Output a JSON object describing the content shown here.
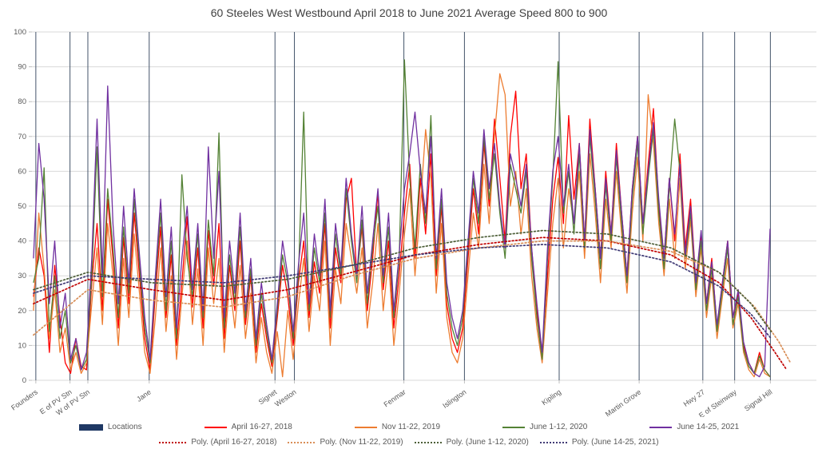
{
  "title": "60 Steeles West Westbound April 2018 to June 2021 Average Speed 800 to 900",
  "colors": {
    "title_text": "#404040",
    "axis_text": "#595959",
    "gridline": "#D9D9D9",
    "location_line": "#44546A",
    "locations_legend_swatch": "#1F3864"
  },
  "chart_data": {
    "type": "line",
    "title": "60 Steeles West Westbound April 2018 to June 2021 Average Speed 800 to 900",
    "xlabel": "",
    "ylabel": "",
    "ylim": [
      0,
      100
    ],
    "y_ticks": [
      0,
      10,
      20,
      30,
      40,
      50,
      60,
      70,
      80,
      90,
      100
    ],
    "grid": "horizontal major gridlines; vertical line at each named location",
    "legend_position": "bottom",
    "locations_series": {
      "name": "Locations",
      "note": "full-height vertical marker line at each station, 0 to 100",
      "line_color": "#44546A",
      "legend_swatch_color": "#1F3864"
    },
    "locations": [
      {
        "name": "Founders",
        "f": 0.005
      },
      {
        "name": "E of PV Stn",
        "f": 0.049
      },
      {
        "name": "W of PV Stn",
        "f": 0.072
      },
      {
        "name": "Jane",
        "f": 0.151
      },
      {
        "name": "Signet",
        "f": 0.313
      },
      {
        "name": "Weston",
        "f": 0.338
      },
      {
        "name": "Fenmar",
        "f": 0.479
      },
      {
        "name": "Islington",
        "f": 0.557
      },
      {
        "name": "Kipling",
        "f": 0.679
      },
      {
        "name": "Martin Grove",
        "f": 0.782
      },
      {
        "name": "Hwy 27",
        "f": 0.864
      },
      {
        "name": "E of Steinway",
        "f": 0.905
      },
      {
        "name": "Signal Hill",
        "f": 0.951
      }
    ],
    "series_x_range": [
      0.002,
      0.9506
    ],
    "series": [
      {
        "name": "April 16-27, 2018",
        "color": "#FF0000",
        "values": [
          24,
          38,
          30,
          8,
          33,
          18,
          5,
          2,
          12,
          4,
          3,
          28,
          45,
          20,
          52,
          35,
          15,
          41,
          22,
          48,
          30,
          12,
          3,
          25,
          44,
          18,
          36,
          10,
          28,
          47,
          21,
          38,
          15,
          43,
          27,
          45,
          12,
          33,
          20,
          40,
          16,
          30,
          8,
          22,
          12,
          4,
          18,
          33,
          24,
          10,
          28,
          40,
          18,
          34,
          25,
          45,
          15,
          38,
          28,
          52,
          58,
          30,
          44,
          20,
          35,
          54,
          26,
          40,
          15,
          30,
          48,
          62,
          35,
          58,
          42,
          65,
          30,
          50,
          22,
          12,
          8,
          15,
          35,
          55,
          42,
          68,
          50,
          75,
          58,
          40,
          70,
          83,
          55,
          65,
          38,
          20,
          8,
          30,
          52,
          64,
          45,
          76,
          52,
          68,
          40,
          75,
          55,
          35,
          60,
          42,
          68,
          48,
          30,
          55,
          70,
          45,
          62,
          78,
          50,
          35,
          58,
          40,
          65,
          38,
          52,
          28,
          42,
          22,
          35,
          15,
          28,
          40,
          18,
          25,
          10,
          5,
          2,
          8,
          3,
          1
        ]
      },
      {
        "name": "Nov 11-22, 2019",
        "color": "#ED7D31",
        "values": [
          20,
          48,
          32,
          12,
          26,
          8,
          15,
          3,
          8,
          2,
          5,
          22,
          38,
          16,
          45,
          30,
          10,
          35,
          18,
          42,
          25,
          8,
          2,
          18,
          38,
          14,
          30,
          6,
          24,
          40,
          16,
          32,
          10,
          38,
          22,
          35,
          8,
          28,
          15,
          33,
          12,
          25,
          5,
          18,
          8,
          2,
          14,
          1,
          20,
          6,
          22,
          35,
          14,
          30,
          20,
          40,
          10,
          32,
          22,
          45,
          35,
          25,
          38,
          15,
          28,
          45,
          20,
          35,
          10,
          25,
          42,
          55,
          30,
          50,
          72,
          58,
          25,
          45,
          18,
          8,
          5,
          12,
          30,
          48,
          38,
          62,
          45,
          70,
          88,
          82,
          50,
          60,
          42,
          55,
          30,
          15,
          5,
          25,
          45,
          58,
          38,
          55,
          45,
          60,
          35,
          65,
          48,
          28,
          52,
          38,
          60,
          42,
          25,
          48,
          64,
          40,
          82,
          68,
          45,
          30,
          52,
          35,
          58,
          32,
          46,
          24,
          38,
          18,
          30,
          12,
          24,
          35,
          15,
          22,
          8,
          3,
          1,
          6,
          2,
          1
        ]
      },
      {
        "name": "June 1-12, 2020",
        "color": "#548235",
        "values": [
          28,
          35,
          61,
          14,
          30,
          12,
          20,
          5,
          10,
          3,
          6,
          30,
          67,
          24,
          55,
          38,
          18,
          44,
          25,
          52,
          33,
          15,
          5,
          28,
          48,
          20,
          40,
          12,
          59,
          35,
          24,
          42,
          18,
          46,
          30,
          71,
          15,
          36,
          22,
          44,
          18,
          32,
          10,
          25,
          14,
          5,
          20,
          36,
          28,
          12,
          30,
          77,
          20,
          38,
          28,
          48,
          18,
          42,
          30,
          55,
          40,
          28,
          46,
          22,
          38,
          50,
          28,
          44,
          18,
          34,
          92,
          58,
          38,
          62,
          45,
          76,
          32,
          52,
          25,
          15,
          10,
          18,
          38,
          58,
          45,
          70,
          52,
          65,
          48,
          35,
          62,
          55,
          48,
          60,
          35,
          18,
          6,
          35,
          58,
          91.5,
          48,
          60,
          42,
          65,
          38,
          70,
          52,
          32,
          56,
          40,
          64,
          45,
          28,
          52,
          68,
          42,
          58,
          72,
          48,
          32,
          55,
          75,
          60,
          35,
          48,
          26,
          40,
          20,
          32,
          14,
          26,
          38,
          16,
          24,
          9,
          4,
          2,
          7,
          3,
          1
        ]
      },
      {
        "name": "June 14-25, 2021",
        "color": "#7030A0",
        "values": [
          35,
          68,
          52,
          22,
          40,
          15,
          25,
          6,
          12,
          3,
          8,
          35,
          75,
          30,
          84.5,
          45,
          22,
          50,
          28,
          55,
          36,
          18,
          6,
          30,
          52,
          24,
          44,
          15,
          35,
          50,
          26,
          45,
          20,
          67,
          35,
          60,
          18,
          40,
          25,
          48,
          20,
          35,
          12,
          28,
          16,
          6,
          22,
          40,
          30,
          14,
          33,
          48,
          22,
          42,
          30,
          52,
          20,
          45,
          32,
          58,
          42,
          30,
          50,
          25,
          40,
          55,
          30,
          48,
          20,
          36,
          55,
          65,
          77,
          60,
          48,
          70,
          35,
          55,
          28,
          18,
          12,
          20,
          40,
          60,
          48,
          72,
          55,
          68,
          50,
          38,
          65,
          58,
          50,
          62,
          38,
          22,
          8,
          38,
          60,
          70,
          50,
          62,
          45,
          68,
          40,
          72,
          55,
          35,
          58,
          42,
          66,
          48,
          30,
          55,
          70,
          45,
          60,
          74,
          52,
          35,
          58,
          42,
          62,
          36,
          50,
          28,
          43,
          22,
          34,
          16,
          28,
          40,
          18,
          26,
          11,
          5,
          2,
          1,
          4,
          43.5
        ]
      }
    ],
    "trendlines": [
      {
        "name": "Poly. (April 16-27, 2018)",
        "color": "#C00000",
        "points": [
          [
            0.002,
            22
          ],
          [
            0.072,
            29
          ],
          [
            0.154,
            26
          ],
          [
            0.247,
            23
          ],
          [
            0.329,
            26
          ],
          [
            0.412,
            31
          ],
          [
            0.494,
            36
          ],
          [
            0.576,
            39
          ],
          [
            0.658,
            41
          ],
          [
            0.741,
            40
          ],
          [
            0.823,
            36
          ],
          [
            0.885,
            28
          ],
          [
            0.926,
            18
          ],
          [
            0.957,
            8
          ],
          [
            0.972,
            3
          ]
        ]
      },
      {
        "name": "Poly. (Nov 11-22, 2019)",
        "color": "#D98E57",
        "points": [
          [
            0.002,
            13
          ],
          [
            0.072,
            26
          ],
          [
            0.154,
            23
          ],
          [
            0.247,
            21
          ],
          [
            0.329,
            24
          ],
          [
            0.412,
            30
          ],
          [
            0.494,
            35
          ],
          [
            0.576,
            38
          ],
          [
            0.658,
            40
          ],
          [
            0.741,
            40
          ],
          [
            0.823,
            37
          ],
          [
            0.885,
            31
          ],
          [
            0.931,
            21
          ],
          [
            0.962,
            11
          ],
          [
            0.977,
            5
          ]
        ]
      },
      {
        "name": "Poly. (June 1-12, 2020)",
        "color": "#4D5F38",
        "points": [
          [
            0.002,
            26
          ],
          [
            0.072,
            31
          ],
          [
            0.154,
            28
          ],
          [
            0.247,
            27
          ],
          [
            0.329,
            29
          ],
          [
            0.412,
            33
          ],
          [
            0.494,
            38
          ],
          [
            0.576,
            41
          ],
          [
            0.658,
            43
          ],
          [
            0.741,
            42
          ],
          [
            0.823,
            38
          ],
          [
            0.885,
            31
          ],
          [
            0.926,
            22
          ],
          [
            0.952,
            14
          ]
        ]
      },
      {
        "name": "Poly. (June 14-25, 2021)",
        "color": "#403A75",
        "points": [
          [
            0.002,
            25
          ],
          [
            0.072,
            30
          ],
          [
            0.154,
            29
          ],
          [
            0.247,
            28
          ],
          [
            0.329,
            30
          ],
          [
            0.412,
            33
          ],
          [
            0.494,
            36
          ],
          [
            0.576,
            38
          ],
          [
            0.658,
            39
          ],
          [
            0.741,
            38
          ],
          [
            0.823,
            34
          ],
          [
            0.885,
            27
          ],
          [
            0.926,
            19
          ],
          [
            0.952,
            12
          ]
        ]
      }
    ]
  },
  "legend": {
    "row1": [
      {
        "kind": "bar",
        "label": "Locations",
        "color": "#1F3864"
      },
      {
        "kind": "line",
        "label": "April 16-27, 2018",
        "color": "#FF0000"
      },
      {
        "kind": "line",
        "label": "Nov 11-22, 2019",
        "color": "#ED7D31"
      },
      {
        "kind": "line",
        "label": "June 1-12, 2020",
        "color": "#548235"
      },
      {
        "kind": "line",
        "label": "June 14-25, 2021",
        "color": "#7030A0"
      }
    ],
    "row2": [
      {
        "kind": "dotted",
        "label": "Poly. (April 16-27, 2018)",
        "color": "#C00000"
      },
      {
        "kind": "dotted",
        "label": "Poly. (Nov 11-22, 2019)",
        "color": "#D98E57"
      },
      {
        "kind": "dotted",
        "label": "Poly. (June 1-12, 2020)",
        "color": "#4D5F38"
      },
      {
        "kind": "dotted",
        "label": "Poly. (June 14-25, 2021)",
        "color": "#403A75"
      }
    ]
  }
}
